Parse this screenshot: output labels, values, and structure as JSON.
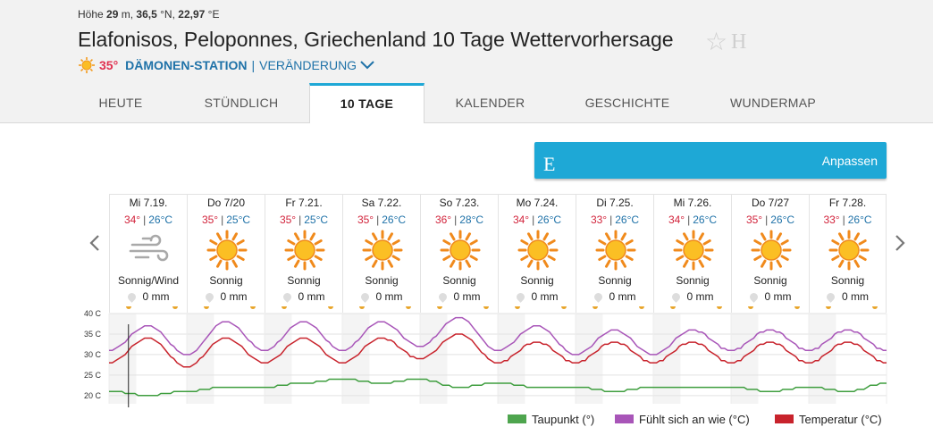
{
  "header": {
    "elevation_label": "Höhe",
    "elevation_value": "29",
    "elevation_unit": "m,",
    "lat": "36,5",
    "lat_unit": "°N,",
    "lon": "22,97",
    "lon_unit": "°E",
    "title": "Elafonisos, Peloponnes, Griechenland 10 Tage Wettervorhersage",
    "star_icon": "☆",
    "history_icon": "H",
    "current_temp": "35°",
    "station": "DÄMONEN-STATION",
    "separator": "|",
    "change": "VERÄNDERUNG"
  },
  "tabs": [
    {
      "label": "HEUTE",
      "active": false
    },
    {
      "label": "STÜNDLICH",
      "active": false
    },
    {
      "label": "10 TAGE",
      "active": true
    },
    {
      "label": "KALENDER",
      "active": false
    },
    {
      "label": "GESCHICHTE",
      "active": false
    },
    {
      "label": "WUNDERMAP",
      "active": false
    }
  ],
  "customize": {
    "icon_letter": "E",
    "label": "Anpassen"
  },
  "days": [
    {
      "date": "Mi 7.19.",
      "hi": "34°",
      "lo": "26°C",
      "cond": "Sonnig/Wind",
      "precip": "0 mm",
      "icon": "wind-icon"
    },
    {
      "date": "Do 7/20",
      "hi": "35°",
      "lo": "25°C",
      "cond": "Sonnig",
      "precip": "0 mm",
      "icon": "sun-icon"
    },
    {
      "date": "Fr 7.21.",
      "hi": "35°",
      "lo": "25°C",
      "cond": "Sonnig",
      "precip": "0 mm",
      "icon": "sun-icon"
    },
    {
      "date": "Sa 7.22.",
      "hi": "35°",
      "lo": "26°C",
      "cond": "Sonnig",
      "precip": "0 mm",
      "icon": "sun-icon"
    },
    {
      "date": "So 7.23.",
      "hi": "36°",
      "lo": "28°C",
      "cond": "Sonnig",
      "precip": "0 mm",
      "icon": "sun-icon"
    },
    {
      "date": "Mo 7.24.",
      "hi": "34°",
      "lo": "26°C",
      "cond": "Sonnig",
      "precip": "0 mm",
      "icon": "sun-icon"
    },
    {
      "date": "Di 7.25.",
      "hi": "33°",
      "lo": "26°C",
      "cond": "Sonnig",
      "precip": "0 mm",
      "icon": "sun-icon"
    },
    {
      "date": "Mi 7.26.",
      "hi": "34°",
      "lo": "26°C",
      "cond": "Sonnig",
      "precip": "0 mm",
      "icon": "sun-icon"
    },
    {
      "date": "Do 7/27",
      "hi": "35°",
      "lo": "26°C",
      "cond": "Sonnig",
      "precip": "0 mm",
      "icon": "sun-icon"
    },
    {
      "date": "Fr 7.28.",
      "hi": "33°",
      "lo": "26°C",
      "cond": "Sonnig",
      "precip": "0 mm",
      "icon": "sun-icon"
    }
  ],
  "colors": {
    "dewpoint": "#3f9e3f",
    "feels": "#a855b8",
    "temp": "#c8232c",
    "accent": "#1ea8d6"
  },
  "chart_data": {
    "type": "line",
    "ylim": [
      18,
      40
    ],
    "y_ticks": [
      "40 C",
      "35 C",
      "30 C",
      "25 C",
      "20 C"
    ],
    "x": [
      0,
      12,
      24,
      36,
      48,
      60,
      72,
      84,
      96,
      108,
      120,
      132,
      144,
      156,
      168,
      180,
      192,
      204,
      216,
      228,
      240
    ],
    "series": [
      {
        "name": "Taupunkt (°)",
        "key": "dewpoint",
        "values": [
          21,
          20,
          21,
          22,
          22,
          23,
          24,
          23,
          24,
          22,
          23,
          22,
          22,
          21,
          22,
          22,
          22,
          21,
          22,
          21,
          23
        ]
      },
      {
        "name": "Fühlt sich an wie (°C)",
        "key": "feels",
        "values": [
          31,
          37,
          30,
          38,
          31,
          38,
          31,
          38,
          32,
          39,
          31,
          37,
          30,
          36,
          30,
          36,
          31,
          36,
          31,
          36,
          31
        ]
      },
      {
        "name": "Temperatur (°C)",
        "key": "temp",
        "values": [
          28,
          34,
          27,
          34,
          28,
          34,
          28,
          34,
          29,
          35,
          28,
          33,
          28,
          33,
          28,
          33,
          28,
          33,
          28,
          33,
          28
        ]
      }
    ]
  }
}
